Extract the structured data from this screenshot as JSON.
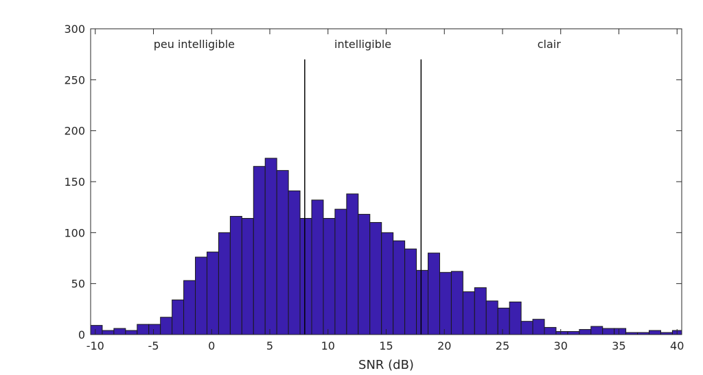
{
  "chart_data": {
    "type": "bar",
    "title": "",
    "xlabel": "SNR (dB)",
    "ylabel": "",
    "xlim": [
      -10.4,
      40.4
    ],
    "ylim": [
      0,
      300
    ],
    "xticks": [
      -10,
      -5,
      0,
      5,
      10,
      15,
      20,
      25,
      30,
      35,
      40
    ],
    "xtick_labels": [
      "-10",
      "-5",
      "0",
      "5",
      "10",
      "15",
      "20",
      "25",
      "30",
      "35",
      "40"
    ],
    "yticks": [
      0,
      50,
      100,
      150,
      200,
      250,
      300
    ],
    "ytick_labels": [
      "0",
      "50",
      "100",
      "150",
      "200",
      "250",
      "300"
    ],
    "grid": false,
    "bar_color": "#3b1fae",
    "edge_color": "#1a1a1a",
    "bin_width": 1,
    "bin_start": -10.4,
    "values": [
      9,
      4,
      6,
      4,
      10,
      10,
      17,
      34,
      53,
      76,
      81,
      100,
      116,
      114,
      165,
      173,
      161,
      141,
      114,
      132,
      114,
      123,
      138,
      118,
      110,
      100,
      92,
      84,
      63,
      80,
      61,
      62,
      42,
      46,
      33,
      26,
      32,
      13,
      15,
      7,
      3,
      3,
      5,
      8,
      6,
      6,
      2,
      2,
      4,
      2,
      4
    ],
    "thresholds": [
      8,
      18
    ],
    "threshold_top": 270,
    "regions": [
      {
        "label": "peu intelligible",
        "x": -1.5
      },
      {
        "label": "intelligible",
        "x": 13
      },
      {
        "label": "clair",
        "x": 29
      }
    ]
  }
}
